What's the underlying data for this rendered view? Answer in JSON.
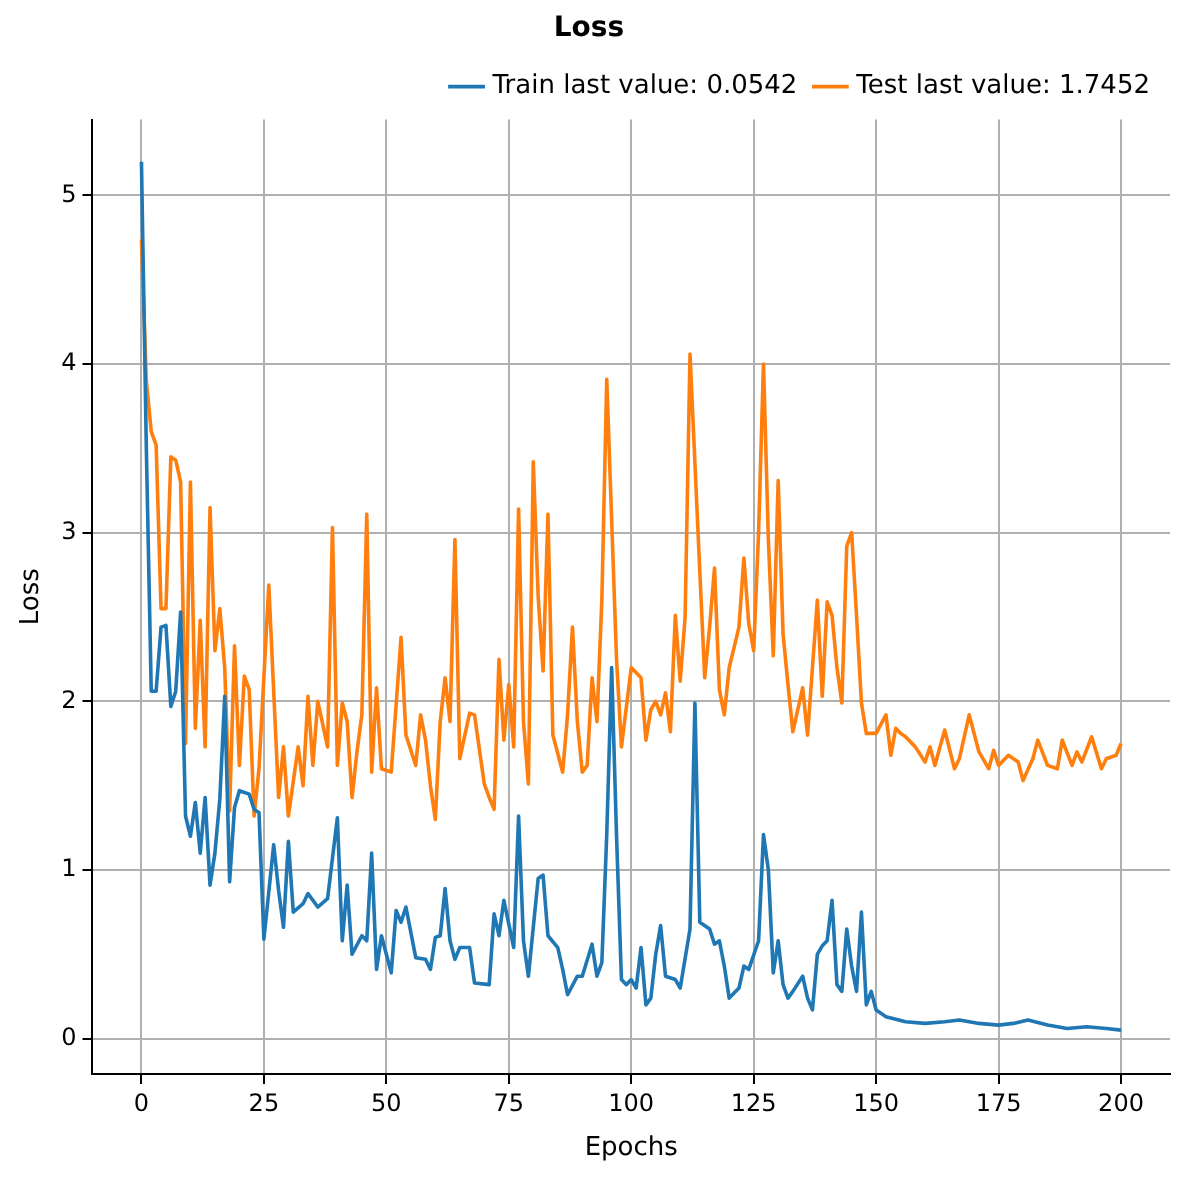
{
  "chart_data": {
    "type": "line",
    "title": "Loss",
    "xlabel": "Epochs",
    "ylabel": "Loss",
    "xlim": [
      -10,
      210
    ],
    "xticks": [
      0,
      25,
      50,
      75,
      100,
      125,
      150,
      175,
      200
    ],
    "ylim": [
      -0.21,
      5.45
    ],
    "yticks": [
      0,
      1,
      2,
      3,
      4,
      5
    ],
    "grid": true,
    "legend": "top right",
    "marker": "none",
    "line_style": "solid",
    "series": [
      {
        "name": "Train last value: 0.0542",
        "color": "#1f77b4",
        "x": [
          0,
          1,
          2,
          3,
          4,
          5,
          6,
          7,
          8,
          9,
          10,
          11,
          12,
          13,
          14,
          15,
          16,
          17,
          18,
          19,
          20,
          22,
          23,
          24,
          25,
          27,
          28,
          29,
          30,
          31,
          33,
          34,
          36,
          38,
          40,
          41,
          42,
          43,
          45,
          46,
          47,
          48,
          49,
          51,
          52,
          53,
          54,
          56,
          58,
          59,
          60,
          61,
          62,
          63,
          64,
          65,
          66,
          67,
          68,
          71,
          72,
          73,
          74,
          76,
          77,
          78,
          79,
          81,
          82,
          83,
          85,
          86,
          87,
          89,
          90,
          92,
          93,
          94,
          95,
          96,
          97,
          98,
          99,
          100,
          101,
          102,
          103,
          104,
          105,
          106,
          107,
          109,
          110,
          112,
          113,
          114,
          116,
          117,
          118,
          119,
          120,
          122,
          123,
          124,
          126,
          127,
          128,
          129,
          130,
          131,
          132,
          133,
          135,
          136,
          137,
          138,
          139,
          140,
          141,
          142,
          143,
          144,
          145,
          146,
          147,
          148,
          149,
          150,
          152,
          156,
          160,
          164,
          167,
          171,
          175,
          178,
          181,
          185,
          189,
          193,
          197,
          200
        ],
        "values": [
          5.2,
          3.5,
          2.06,
          2.06,
          2.44,
          2.45,
          1.97,
          2.06,
          2.53,
          1.32,
          1.2,
          1.4,
          1.1,
          1.43,
          0.91,
          1.1,
          1.42,
          2.03,
          0.93,
          1.37,
          1.47,
          1.45,
          1.36,
          1.34,
          0.59,
          1.15,
          0.88,
          0.66,
          1.17,
          0.75,
          0.8,
          0.86,
          0.78,
          0.83,
          1.31,
          0.58,
          0.91,
          0.5,
          0.61,
          0.58,
          1.1,
          0.41,
          0.61,
          0.39,
          0.76,
          0.69,
          0.78,
          0.48,
          0.47,
          0.41,
          0.6,
          0.61,
          0.89,
          0.58,
          0.47,
          0.54,
          0.54,
          0.54,
          0.33,
          0.32,
          0.74,
          0.61,
          0.82,
          0.54,
          1.32,
          0.58,
          0.37,
          0.95,
          0.97,
          0.61,
          0.54,
          0.41,
          0.26,
          0.37,
          0.37,
          0.56,
          0.37,
          0.45,
          1.21,
          2.2,
          1.2,
          0.35,
          0.32,
          0.35,
          0.3,
          0.54,
          0.2,
          0.24,
          0.5,
          0.67,
          0.37,
          0.35,
          0.3,
          0.65,
          1.99,
          0.69,
          0.65,
          0.56,
          0.58,
          0.43,
          0.24,
          0.3,
          0.43,
          0.41,
          0.58,
          1.21,
          1.0,
          0.39,
          0.58,
          0.32,
          0.24,
          0.28,
          0.37,
          0.24,
          0.17,
          0.5,
          0.55,
          0.58,
          0.82,
          0.32,
          0.28,
          0.65,
          0.43,
          0.28,
          0.75,
          0.2,
          0.28,
          0.17,
          0.13,
          0.1,
          0.09,
          0.1,
          0.11,
          0.09,
          0.08,
          0.09,
          0.11,
          0.08,
          0.06,
          0.07,
          0.06,
          0.05
        ]
      },
      {
        "name": "Test last value: 1.7452",
        "color": "#ff7f0e",
        "x": [
          0,
          1,
          2,
          3,
          4,
          5,
          6,
          7,
          8,
          9,
          10,
          11,
          12,
          13,
          14,
          15,
          16,
          17,
          18,
          19,
          20,
          21,
          22,
          23,
          24,
          26,
          28,
          29,
          30,
          32,
          33,
          34,
          35,
          36,
          38,
          39,
          40,
          41,
          42,
          43,
          44,
          45,
          46,
          47,
          48,
          49,
          51,
          53,
          54,
          56,
          57,
          58,
          59,
          60,
          61,
          62,
          63,
          64,
          65,
          67,
          68,
          70,
          71,
          72,
          73,
          74,
          75,
          76,
          77,
          78,
          79,
          80,
          81,
          82,
          83,
          84,
          86,
          87,
          88,
          89,
          90,
          91,
          92,
          93,
          94,
          95,
          97,
          98,
          100,
          102,
          103,
          104,
          105,
          106,
          107,
          108,
          109,
          110,
          111,
          112,
          114,
          115,
          116,
          117,
          118,
          119,
          120,
          122,
          123,
          124,
          125,
          126,
          127,
          128,
          129,
          130,
          131,
          132,
          133,
          135,
          136,
          137,
          138,
          139,
          140,
          141,
          142,
          143,
          144,
          145,
          146,
          147,
          148,
          150,
          152,
          153,
          154,
          155,
          156,
          158,
          160,
          161,
          162,
          164,
          166,
          167,
          169,
          171,
          173,
          174,
          175,
          177,
          179,
          180,
          182,
          183,
          185,
          187,
          188,
          190,
          191,
          192,
          194,
          196,
          197,
          199,
          200
        ],
        "values": [
          4.74,
          3.9,
          3.6,
          3.52,
          2.55,
          2.55,
          3.45,
          3.43,
          3.3,
          1.75,
          3.3,
          1.84,
          2.48,
          1.73,
          3.15,
          2.3,
          2.55,
          2.2,
          1.35,
          2.33,
          1.62,
          2.15,
          2.07,
          1.32,
          1.6,
          2.69,
          1.43,
          1.73,
          1.32,
          1.73,
          1.5,
          2.03,
          1.62,
          2.0,
          1.73,
          3.03,
          1.62,
          1.99,
          1.88,
          1.43,
          1.7,
          1.92,
          3.11,
          1.58,
          2.08,
          1.6,
          1.58,
          2.38,
          1.8,
          1.62,
          1.92,
          1.77,
          1.5,
          1.3,
          1.88,
          2.14,
          1.88,
          2.96,
          1.66,
          1.93,
          1.92,
          1.51,
          1.43,
          1.36,
          2.25,
          1.77,
          2.1,
          1.73,
          3.14,
          1.88,
          1.51,
          3.42,
          2.62,
          2.18,
          3.11,
          1.8,
          1.58,
          1.92,
          2.44,
          1.88,
          1.58,
          1.62,
          2.14,
          1.88,
          2.6,
          3.91,
          2.25,
          1.73,
          2.2,
          2.14,
          1.77,
          1.95,
          2.0,
          1.92,
          2.05,
          1.82,
          2.51,
          2.12,
          2.5,
          4.06,
          2.77,
          2.14,
          2.44,
          2.79,
          2.07,
          1.92,
          2.2,
          2.44,
          2.85,
          2.46,
          2.3,
          3.0,
          4.0,
          2.96,
          2.27,
          3.31,
          2.4,
          2.1,
          1.82,
          2.08,
          1.8,
          2.2,
          2.6,
          2.03,
          2.59,
          2.51,
          2.2,
          1.99,
          2.92,
          3.0,
          2.51,
          1.99,
          1.81,
          1.81,
          1.92,
          1.68,
          1.84,
          1.81,
          1.79,
          1.73,
          1.64,
          1.73,
          1.62,
          1.83,
          1.6,
          1.66,
          1.92,
          1.7,
          1.6,
          1.71,
          1.62,
          1.68,
          1.64,
          1.53,
          1.66,
          1.77,
          1.62,
          1.6,
          1.77,
          1.62,
          1.7,
          1.64,
          1.79,
          1.6,
          1.66,
          1.68,
          1.75
        ]
      }
    ]
  }
}
